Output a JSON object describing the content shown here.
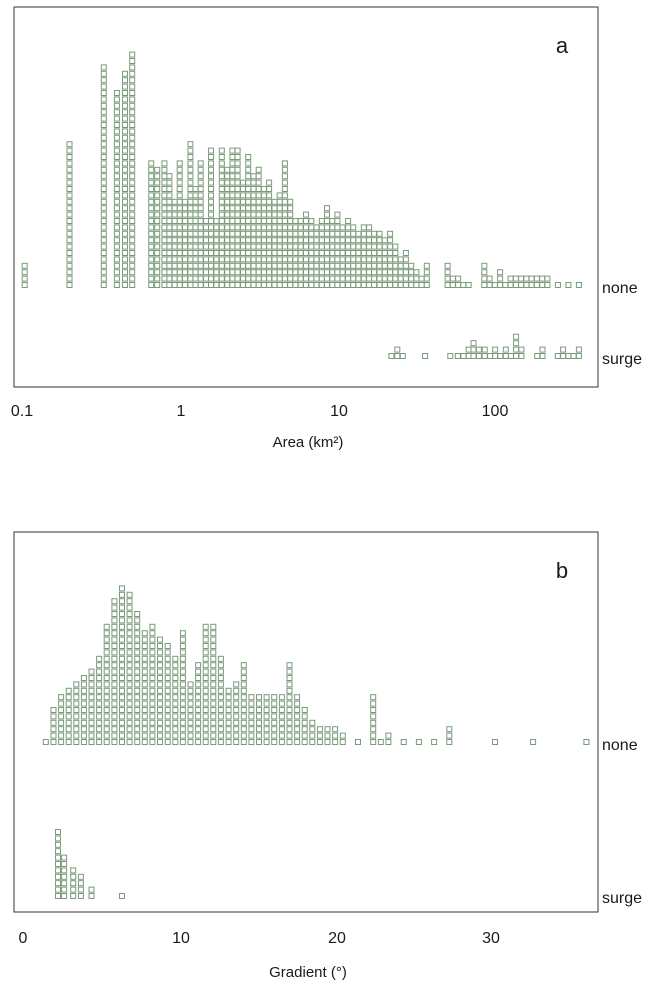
{
  "chart_data": [
    {
      "type": "scatter",
      "subtype": "dot-plot",
      "panel_letter": "a",
      "xlabel": "Area (km²)",
      "x_scale": "log",
      "xlim": [
        0.1,
        400
      ],
      "x_ticks": [
        0.1,
        1,
        10,
        100
      ],
      "x_tick_labels": [
        "0.1",
        "1",
        "10",
        "100"
      ],
      "marker_color": "#7a9a7a",
      "groups": [
        {
          "label": "none",
          "bins": [
            {
              "x": 0.104,
              "count": 4
            },
            {
              "x": 0.2,
              "count": 23
            },
            {
              "x": 0.33,
              "count": 35
            },
            {
              "x": 0.4,
              "count": 31
            },
            {
              "x": 0.45,
              "count": 34
            },
            {
              "x": 0.5,
              "count": 37
            },
            {
              "x": 0.66,
              "count": 20
            },
            {
              "x": 0.72,
              "count": 19
            },
            {
              "x": 0.8,
              "count": 20
            },
            {
              "x": 0.86,
              "count": 18
            },
            {
              "x": 0.93,
              "count": 14
            },
            {
              "x": 1.0,
              "count": 20
            },
            {
              "x": 1.08,
              "count": 14
            },
            {
              "x": 1.17,
              "count": 23
            },
            {
              "x": 1.26,
              "count": 16
            },
            {
              "x": 1.36,
              "count": 20
            },
            {
              "x": 1.47,
              "count": 11
            },
            {
              "x": 1.58,
              "count": 22
            },
            {
              "x": 1.71,
              "count": 11
            },
            {
              "x": 1.85,
              "count": 22
            },
            {
              "x": 2.0,
              "count": 19
            },
            {
              "x": 2.16,
              "count": 22
            },
            {
              "x": 2.33,
              "count": 22
            },
            {
              "x": 2.52,
              "count": 17
            },
            {
              "x": 2.72,
              "count": 21
            },
            {
              "x": 2.94,
              "count": 18
            },
            {
              "x": 3.17,
              "count": 19
            },
            {
              "x": 3.42,
              "count": 16
            },
            {
              "x": 3.69,
              "count": 17
            },
            {
              "x": 3.99,
              "count": 14
            },
            {
              "x": 4.31,
              "count": 15
            },
            {
              "x": 4.65,
              "count": 20
            },
            {
              "x": 5.02,
              "count": 14
            },
            {
              "x": 5.42,
              "count": 11
            },
            {
              "x": 5.85,
              "count": 11
            },
            {
              "x": 6.32,
              "count": 12
            },
            {
              "x": 6.83,
              "count": 11
            },
            {
              "x": 7.37,
              "count": 10
            },
            {
              "x": 7.96,
              "count": 11
            },
            {
              "x": 8.59,
              "count": 13
            },
            {
              "x": 9.28,
              "count": 11
            },
            {
              "x": 10.0,
              "count": 12
            },
            {
              "x": 10.8,
              "count": 10
            },
            {
              "x": 11.7,
              "count": 11
            },
            {
              "x": 12.6,
              "count": 10
            },
            {
              "x": 13.6,
              "count": 9
            },
            {
              "x": 14.7,
              "count": 10
            },
            {
              "x": 15.9,
              "count": 10
            },
            {
              "x": 17.1,
              "count": 9
            },
            {
              "x": 18.5,
              "count": 9
            },
            {
              "x": 20.0,
              "count": 8
            },
            {
              "x": 21.6,
              "count": 9
            },
            {
              "x": 23.3,
              "count": 7
            },
            {
              "x": 25.2,
              "count": 5
            },
            {
              "x": 27.2,
              "count": 6
            },
            {
              "x": 29.4,
              "count": 4
            },
            {
              "x": 31.7,
              "count": 3
            },
            {
              "x": 34.2,
              "count": 2
            },
            {
              "x": 36.9,
              "count": 4
            },
            {
              "x": 50.0,
              "count": 4
            },
            {
              "x": 54.0,
              "count": 2
            },
            {
              "x": 58.3,
              "count": 2
            },
            {
              "x": 62.9,
              "count": 1
            },
            {
              "x": 67.9,
              "count": 1
            },
            {
              "x": 85.5,
              "count": 4
            },
            {
              "x": 92.3,
              "count": 2
            },
            {
              "x": 99.7,
              "count": 1
            },
            {
              "x": 107.6,
              "count": 3
            },
            {
              "x": 116.2,
              "count": 1
            },
            {
              "x": 125.5,
              "count": 2
            },
            {
              "x": 135.5,
              "count": 2
            },
            {
              "x": 146.3,
              "count": 2
            },
            {
              "x": 158.0,
              "count": 2
            },
            {
              "x": 170.6,
              "count": 2
            },
            {
              "x": 184.2,
              "count": 2
            },
            {
              "x": 198.9,
              "count": 2
            },
            {
              "x": 214.8,
              "count": 2
            },
            {
              "x": 250.4,
              "count": 1
            },
            {
              "x": 291.8,
              "count": 1
            },
            {
              "x": 340.2,
              "count": 1
            }
          ]
        },
        {
          "label": "surge",
          "bins": [
            {
              "x": 22.0,
              "count": 1
            },
            {
              "x": 24.0,
              "count": 2
            },
            {
              "x": 26.0,
              "count": 1
            },
            {
              "x": 36.0,
              "count": 1
            },
            {
              "x": 52.0,
              "count": 1
            },
            {
              "x": 58.0,
              "count": 1
            },
            {
              "x": 63.0,
              "count": 1
            },
            {
              "x": 68.0,
              "count": 2
            },
            {
              "x": 73.0,
              "count": 3
            },
            {
              "x": 79.0,
              "count": 2
            },
            {
              "x": 86.0,
              "count": 2
            },
            {
              "x": 93.0,
              "count": 1
            },
            {
              "x": 100.0,
              "count": 2
            },
            {
              "x": 108.0,
              "count": 1
            },
            {
              "x": 117.0,
              "count": 2
            },
            {
              "x": 126.0,
              "count": 1
            },
            {
              "x": 136.0,
              "count": 4
            },
            {
              "x": 147.0,
              "count": 2
            },
            {
              "x": 185.0,
              "count": 1
            },
            {
              "x": 200.0,
              "count": 2
            },
            {
              "x": 250.0,
              "count": 1
            },
            {
              "x": 270.0,
              "count": 2
            },
            {
              "x": 292.0,
              "count": 1
            },
            {
              "x": 315.0,
              "count": 1
            },
            {
              "x": 340.0,
              "count": 2
            }
          ]
        }
      ]
    },
    {
      "type": "scatter",
      "subtype": "dot-plot",
      "panel_letter": "b",
      "xlabel": "Gradient (°)",
      "x_scale": "linear",
      "xlim": [
        -0.5,
        37
      ],
      "x_ticks": [
        0,
        10,
        20,
        30
      ],
      "x_tick_labels": [
        "0",
        "10",
        "20",
        "30"
      ],
      "marker_color": "#7a9a7a",
      "groups": [
        {
          "label": "none",
          "bins": [
            {
              "x": 1.0,
              "count": 1
            },
            {
              "x": 1.5,
              "count": 6
            },
            {
              "x": 2.0,
              "count": 8
            },
            {
              "x": 2.5,
              "count": 9
            },
            {
              "x": 3.0,
              "count": 10
            },
            {
              "x": 3.5,
              "count": 11
            },
            {
              "x": 4.0,
              "count": 12
            },
            {
              "x": 4.5,
              "count": 14
            },
            {
              "x": 5.0,
              "count": 19
            },
            {
              "x": 5.5,
              "count": 23
            },
            {
              "x": 6.0,
              "count": 25
            },
            {
              "x": 6.5,
              "count": 24
            },
            {
              "x": 7.0,
              "count": 21
            },
            {
              "x": 7.5,
              "count": 18
            },
            {
              "x": 8.0,
              "count": 19
            },
            {
              "x": 8.5,
              "count": 17
            },
            {
              "x": 9.0,
              "count": 16
            },
            {
              "x": 9.5,
              "count": 14
            },
            {
              "x": 10.0,
              "count": 18
            },
            {
              "x": 10.5,
              "count": 10
            },
            {
              "x": 11.0,
              "count": 13
            },
            {
              "x": 11.5,
              "count": 19
            },
            {
              "x": 12.0,
              "count": 19
            },
            {
              "x": 12.5,
              "count": 14
            },
            {
              "x": 13.0,
              "count": 9
            },
            {
              "x": 13.5,
              "count": 10
            },
            {
              "x": 14.0,
              "count": 13
            },
            {
              "x": 14.5,
              "count": 8
            },
            {
              "x": 15.0,
              "count": 8
            },
            {
              "x": 15.5,
              "count": 8
            },
            {
              "x": 16.0,
              "count": 8
            },
            {
              "x": 16.5,
              "count": 8
            },
            {
              "x": 17.0,
              "count": 13
            },
            {
              "x": 17.5,
              "count": 8
            },
            {
              "x": 18.0,
              "count": 6
            },
            {
              "x": 18.5,
              "count": 4
            },
            {
              "x": 19.0,
              "count": 3
            },
            {
              "x": 19.5,
              "count": 3
            },
            {
              "x": 20.0,
              "count": 3
            },
            {
              "x": 20.5,
              "count": 2
            },
            {
              "x": 21.5,
              "count": 1
            },
            {
              "x": 22.5,
              "count": 8
            },
            {
              "x": 23.0,
              "count": 1
            },
            {
              "x": 23.5,
              "count": 2
            },
            {
              "x": 24.5,
              "count": 1
            },
            {
              "x": 25.5,
              "count": 1
            },
            {
              "x": 26.5,
              "count": 1
            },
            {
              "x": 27.5,
              "count": 3
            },
            {
              "x": 30.5,
              "count": 1
            },
            {
              "x": 33.0,
              "count": 1
            },
            {
              "x": 36.5,
              "count": 1
            }
          ]
        },
        {
          "label": "surge",
          "bins": [
            {
              "x": 1.8,
              "count": 11
            },
            {
              "x": 2.2,
              "count": 7
            },
            {
              "x": 2.8,
              "count": 5
            },
            {
              "x": 3.3,
              "count": 4
            },
            {
              "x": 4.0,
              "count": 2
            },
            {
              "x": 6.0,
              "count": 1
            }
          ]
        }
      ]
    }
  ]
}
